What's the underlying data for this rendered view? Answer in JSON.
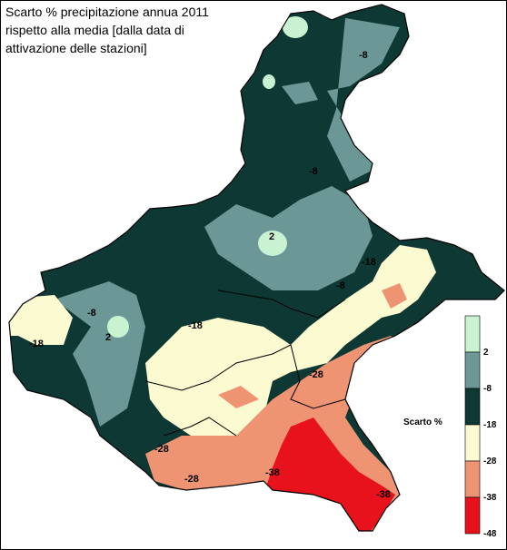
{
  "title": [
    "Scarto % precipitazione annua 2011",
    "rispetto alla media [dalla data di",
    "attivazione delle stazioni]"
  ],
  "legend": {
    "title": "Scarto %",
    "ticks": [
      2,
      -8,
      -18,
      -28,
      -38,
      -48
    ],
    "colors": [
      "#c8f2d2",
      "#6b9897",
      "#0e3833",
      "#fcfad0",
      "#ef9473",
      "#e8121c"
    ]
  },
  "contour_labels": [
    -8,
    -8,
    2,
    -18,
    -8,
    -8,
    2,
    -18,
    -18,
    -28,
    -28,
    -28,
    -38,
    -38
  ]
}
